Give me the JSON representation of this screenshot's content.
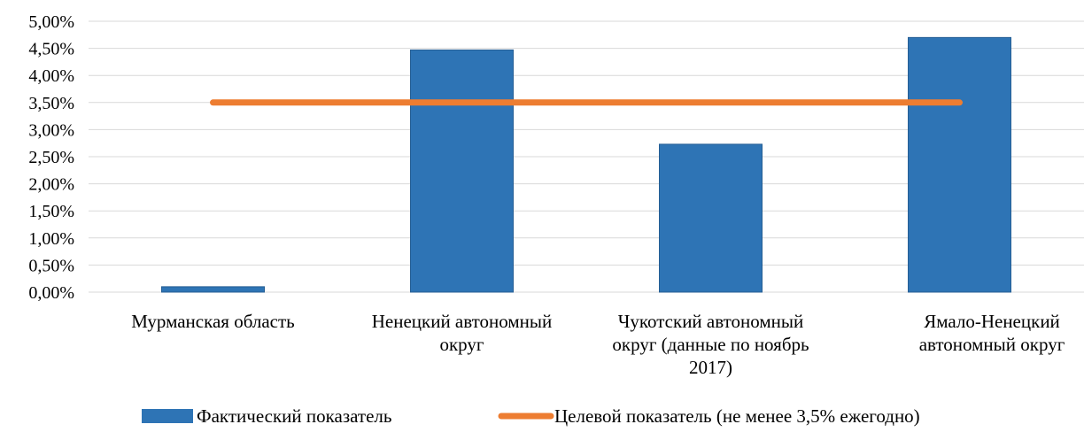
{
  "chart_data": {
    "type": "bar",
    "categories": [
      [
        "Мурманская область"
      ],
      [
        "Ненецкий автономный",
        "округ"
      ],
      [
        "Чукотский автономный",
        "округ (данные по ноябрь",
        "2017)"
      ],
      [
        "Ямало-Ненецкий",
        "автономный округ"
      ]
    ],
    "series": [
      {
        "name": "Фактический показатель",
        "type": "bar",
        "color": "#2E74B5",
        "values": [
          0.1,
          4.47,
          2.73,
          4.7
        ]
      },
      {
        "name": "Целевой показатель (не менее 3,5% ежегодно)",
        "type": "line",
        "color": "#ED7D31",
        "values": [
          3.5,
          3.5,
          3.5,
          3.5
        ]
      }
    ],
    "ylim": [
      0,
      5
    ],
    "y_ticks": [
      "0,00%",
      "0,50%",
      "1,00%",
      "1,50%",
      "2,00%",
      "2,50%",
      "3,00%",
      "3,50%",
      "4,00%",
      "4,50%",
      "5,00%"
    ],
    "grid": true,
    "legend_position": "bottom",
    "title": "",
    "xlabel": "",
    "ylabel": ""
  }
}
